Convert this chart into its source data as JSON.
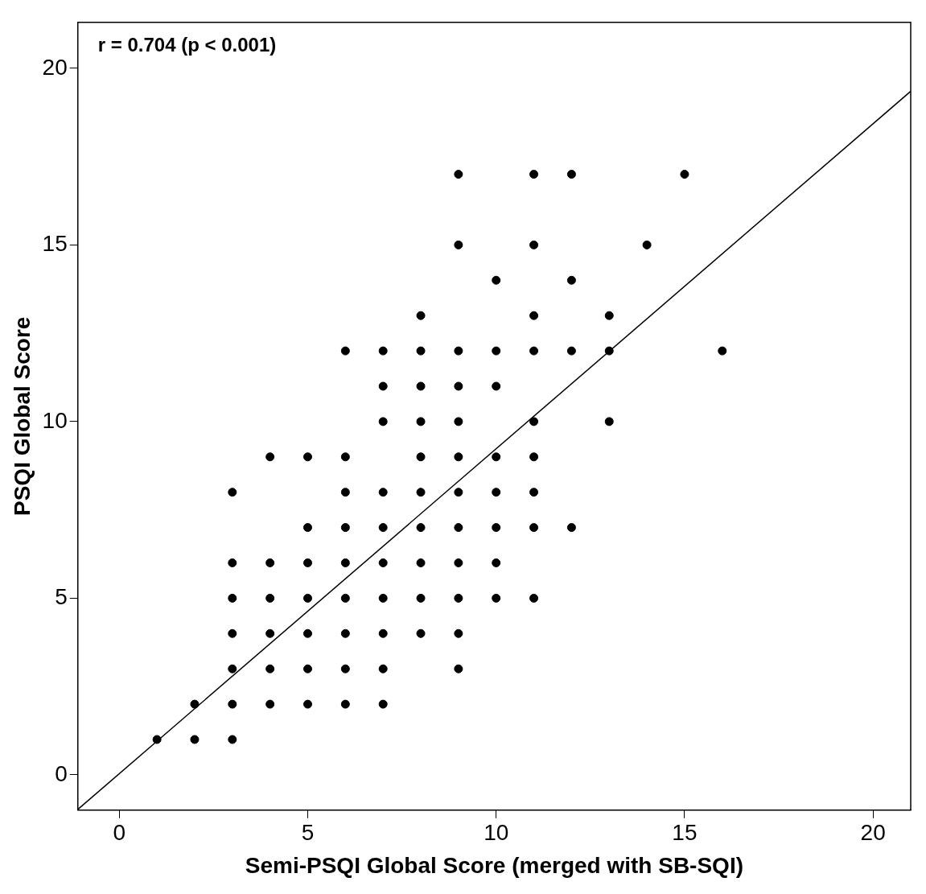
{
  "chart_data": {
    "type": "scatter",
    "xlabel": "Semi-PSQI Global Score (merged with SB-SQI)",
    "ylabel": "PSQI Global Score",
    "annotations": [
      "r = 0.704 (p < 0.001)"
    ],
    "xlim": [
      -1.1,
      21
    ],
    "ylim": [
      -1,
      21.3
    ],
    "xticks": [
      0,
      5,
      10,
      15,
      20
    ],
    "yticks": [
      0,
      5,
      10,
      15,
      20
    ],
    "grid": false,
    "legend": false,
    "marker": "circle",
    "series": [
      {
        "type": "scatter",
        "color": "#000000",
        "x": [
          1,
          2,
          2,
          3,
          3,
          3,
          3,
          3,
          3,
          3,
          4,
          4,
          4,
          4,
          4,
          4,
          5,
          5,
          5,
          5,
          5,
          5,
          5,
          6,
          6,
          6,
          6,
          6,
          6,
          6,
          6,
          6,
          7,
          7,
          7,
          7,
          7,
          7,
          7,
          7,
          7,
          7,
          8,
          8,
          8,
          8,
          8,
          8,
          8,
          8,
          8,
          8,
          9,
          9,
          9,
          9,
          9,
          9,
          9,
          9,
          9,
          9,
          9,
          9,
          10,
          10,
          10,
          10,
          10,
          10,
          10,
          10,
          11,
          11,
          11,
          11,
          11,
          11,
          11,
          11,
          11,
          12,
          12,
          12,
          12,
          13,
          13,
          13,
          14,
          15,
          16
        ],
        "values": [
          1,
          1,
          2,
          1,
          2,
          3,
          4,
          5,
          6,
          8,
          2,
          3,
          4,
          5,
          6,
          9,
          2,
          3,
          4,
          5,
          6,
          7,
          9,
          2,
          3,
          4,
          5,
          6,
          7,
          8,
          9,
          12,
          2,
          3,
          4,
          5,
          6,
          7,
          8,
          10,
          11,
          12,
          4,
          5,
          6,
          7,
          8,
          9,
          10,
          11,
          12,
          13,
          3,
          4,
          5,
          6,
          7,
          8,
          9,
          10,
          11,
          12,
          15,
          17,
          5,
          6,
          7,
          8,
          9,
          11,
          12,
          14,
          5,
          7,
          8,
          9,
          10,
          12,
          13,
          15,
          17,
          7,
          12,
          14,
          17,
          10,
          12,
          13,
          15,
          17,
          12
        ]
      },
      {
        "type": "line",
        "color": "#000000",
        "marker": "none",
        "x": [
          -1.1,
          21
        ],
        "values": [
          -0.98,
          19.35
        ]
      }
    ]
  }
}
